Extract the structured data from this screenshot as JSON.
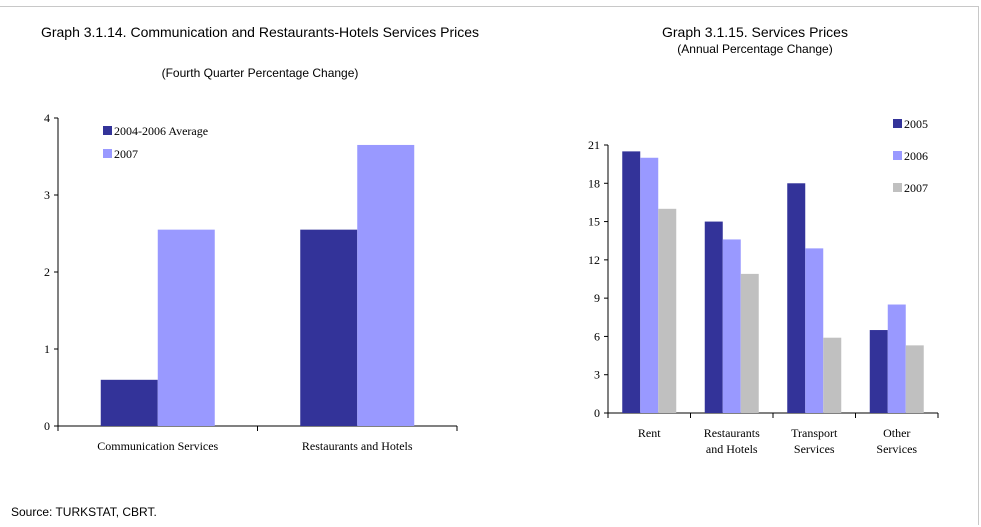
{
  "colors": {
    "dark": "#333399",
    "light": "#9999ff",
    "gray": "#c0c0c0"
  },
  "chart_left": {
    "title": "Graph 3.1.14. Communication and Restaurants-Hotels Services Prices",
    "subtitle": "(Fourth Quarter Percentage Change)"
  },
  "chart_right": {
    "title": "Graph 3.1.15. Services Prices",
    "subtitle": "(Annual Percentage Change)"
  },
  "source": "Source: TURKSTAT, CBRT.",
  "chart_data": [
    {
      "type": "bar",
      "title": "Graph 3.1.14. Communication and Restaurants-Hotels Services Prices",
      "subtitle": "(Fourth Quarter Percentage Change)",
      "categories": [
        "Communication Services",
        "Restaurants and Hotels"
      ],
      "series": [
        {
          "name": "2004-2006 Average",
          "values": [
            0.6,
            2.55
          ]
        },
        {
          "name": "2007",
          "values": [
            2.55,
            3.65
          ]
        }
      ],
      "ylim": [
        0,
        4
      ],
      "yticks": [
        "0",
        "1",
        "2",
        "3",
        "4"
      ],
      "legend": "top-left",
      "grid": false
    },
    {
      "type": "bar",
      "title": "Graph 3.1.15. Services Prices",
      "subtitle": "(Annual Percentage Change)",
      "categories": [
        [
          "Rent"
        ],
        [
          "Restaurants",
          "and Hotels"
        ],
        [
          "Transport",
          "Services"
        ],
        [
          "Other",
          "Services"
        ]
      ],
      "series": [
        {
          "name": "2005",
          "values": [
            20.5,
            15.0,
            18.0,
            6.5
          ]
        },
        {
          "name": "2006",
          "values": [
            20.0,
            13.6,
            12.9,
            8.5
          ]
        },
        {
          "name": "2007",
          "values": [
            16.0,
            10.9,
            5.9,
            5.3
          ]
        }
      ],
      "ylim": [
        0,
        21
      ],
      "yticks": [
        "0",
        "3",
        "6",
        "9",
        "12",
        "15",
        "18",
        "21"
      ],
      "legend": "right",
      "grid": false
    }
  ]
}
